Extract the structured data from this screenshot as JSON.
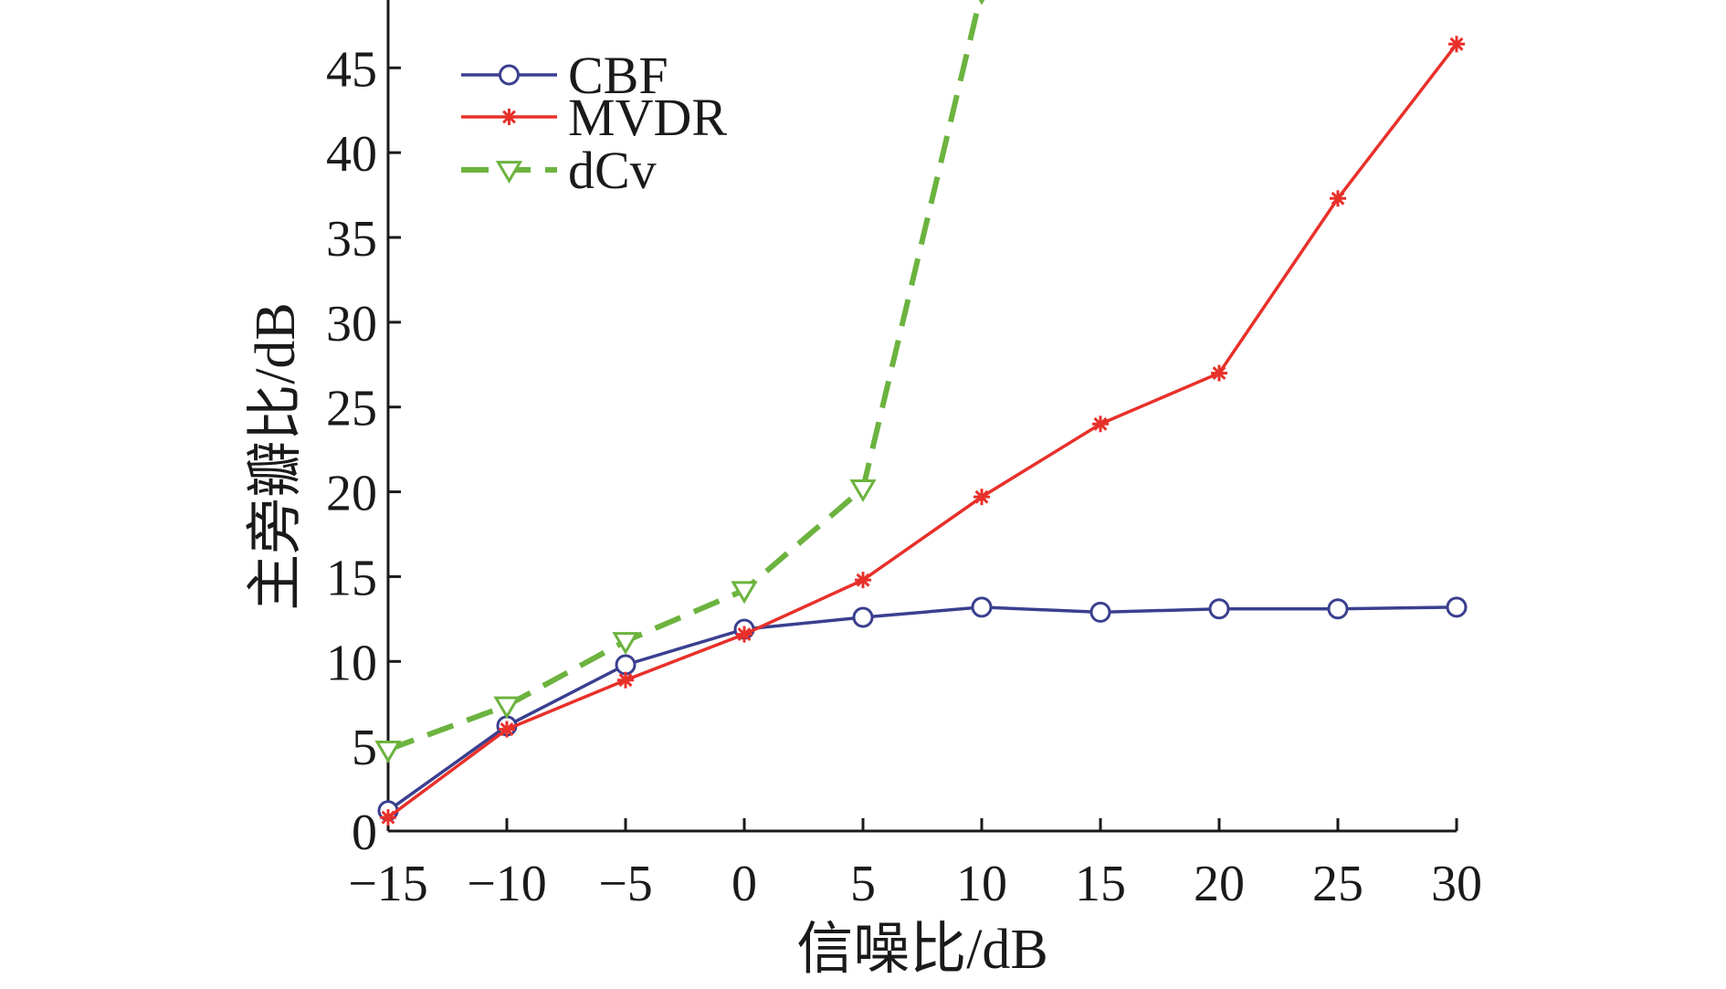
{
  "chart_data": {
    "type": "line",
    "title": "",
    "xlabel": "信噪比/dB",
    "ylabel": "主旁瓣比/dB",
    "x": [
      -15,
      -10,
      -5,
      0,
      5,
      10,
      15,
      20,
      25,
      30
    ],
    "x_tick_labels": [
      "−15",
      "−10",
      "−5",
      "0",
      "5",
      "10",
      "15",
      "20",
      "25",
      "30"
    ],
    "xlim": [
      -15,
      30
    ],
    "ylim": [
      0,
      49
    ],
    "y_ticks": [
      0,
      5,
      10,
      15,
      20,
      25,
      30,
      35,
      40,
      45
    ],
    "y_tick_labels": [
      "0",
      "5",
      "10",
      "15",
      "20",
      "25",
      "30",
      "35",
      "40",
      "45"
    ],
    "grid": false,
    "legend_position": "top-left",
    "series": [
      {
        "name": "CBF",
        "color": "#3a3f8f",
        "line_style": "solid",
        "marker": "circle",
        "x": [
          -15,
          -10,
          -5,
          0,
          5,
          10,
          15,
          20,
          25,
          30
        ],
        "values": [
          1.2,
          6.2,
          9.8,
          11.9,
          12.6,
          13.2,
          12.9,
          13.1,
          13.1,
          13.2
        ]
      },
      {
        "name": "MVDR",
        "color": "#e8302a",
        "line_style": "solid",
        "marker": "asterisk",
        "x": [
          -15,
          -10,
          -5,
          0,
          5,
          10,
          15,
          20,
          25,
          30
        ],
        "values": [
          0.8,
          6.0,
          8.9,
          11.6,
          14.8,
          19.7,
          24.0,
          27.0,
          37.3,
          46.4
        ]
      },
      {
        "name": "dCv",
        "color": "#6cb33f",
        "line_style": "dashed",
        "marker": "triangle-down",
        "x": [
          -15,
          -10,
          -5,
          0,
          5,
          10
        ],
        "values": [
          4.8,
          7.4,
          11.2,
          14.2,
          20.2,
          49.5
        ]
      }
    ]
  }
}
